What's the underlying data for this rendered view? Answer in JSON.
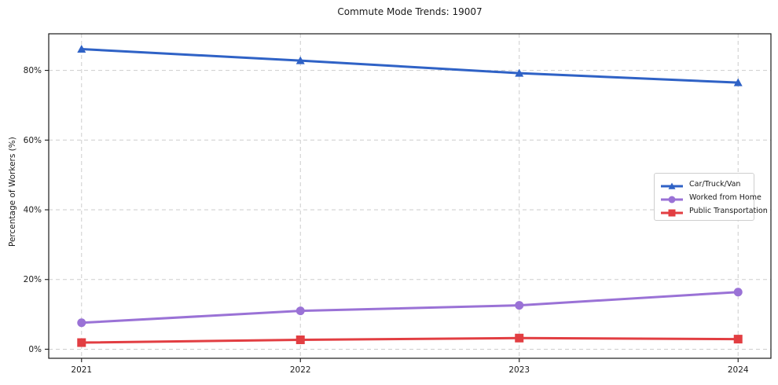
{
  "chart_data": {
    "type": "line",
    "title": "Commute Mode Trends: 19007",
    "xlabel": "",
    "ylabel": "Percentage of Workers (%)",
    "x": [
      2021,
      2022,
      2023,
      2024
    ],
    "x_tick_labels": [
      "2021",
      "2022",
      "2023",
      "2024"
    ],
    "y_ticks": [
      0,
      20,
      40,
      60,
      80
    ],
    "y_tick_labels": [
      "0%",
      "20%",
      "40%",
      "60%",
      "80%"
    ],
    "xlim": [
      2020.85,
      2024.15
    ],
    "ylim": [
      -2.6,
      90.5
    ],
    "grid": true,
    "grid_style": "dashed",
    "legend_position": "center right",
    "series": [
      {
        "name": "Car/Truck/Van",
        "color": "#2f62c6",
        "marker": "triangle-up",
        "values": [
          86.1,
          82.8,
          79.2,
          76.5
        ]
      },
      {
        "name": "Worked from Home",
        "color": "#9a72d6",
        "marker": "circle",
        "values": [
          7.6,
          11.0,
          12.6,
          16.4
        ]
      },
      {
        "name": "Public Transportation",
        "color": "#e23e42",
        "marker": "square",
        "values": [
          1.9,
          2.7,
          3.2,
          2.9
        ]
      }
    ],
    "colors": {
      "grid": "#cdcdcd",
      "spine": "#1a1a1a",
      "tick_text": "#1a1a1a",
      "background": "#ffffff"
    }
  }
}
